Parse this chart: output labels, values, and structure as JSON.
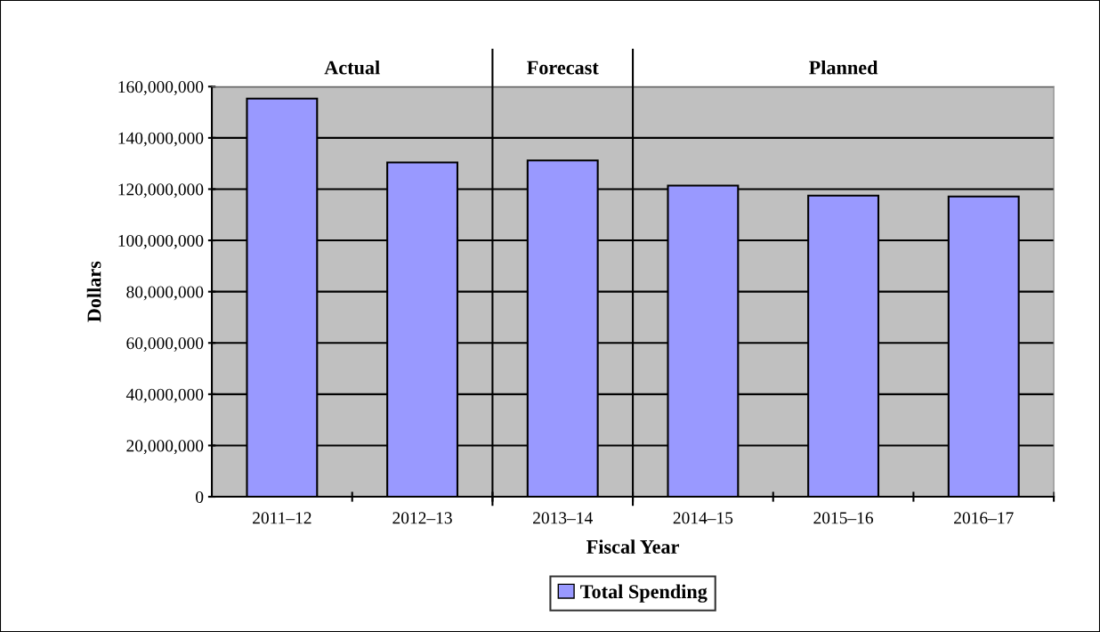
{
  "chart_data": {
    "type": "bar",
    "categories": [
      "2011–12",
      "2012–13",
      "2013–14",
      "2014–15",
      "2015–16",
      "2016–17"
    ],
    "series": [
      {
        "name": "Total Spending",
        "color": "#9999ff",
        "values": [
          155300000,
          130400000,
          131200000,
          121400000,
          117500000,
          117100000
        ]
      }
    ],
    "xlabel": "Fiscal Year",
    "ylabel": "Dollars",
    "ylim": [
      0,
      160000000
    ],
    "yticks": [
      {
        "value": 0,
        "label": "0"
      },
      {
        "value": 20000000,
        "label": "20,000,000"
      },
      {
        "value": 40000000,
        "label": "40,000,000"
      },
      {
        "value": 60000000,
        "label": "60,000,000"
      },
      {
        "value": 80000000,
        "label": "80,000,000"
      },
      {
        "value": 100000000,
        "label": "100,000,000"
      },
      {
        "value": 120000000,
        "label": "120,000,000"
      },
      {
        "value": 140000000,
        "label": "140,000,000"
      },
      {
        "value": 160000000,
        "label": "160,000,000"
      }
    ],
    "annotations": [
      "Actual",
      "Forecast",
      "Planned"
    ],
    "grid": "y",
    "legend": "bottom"
  }
}
